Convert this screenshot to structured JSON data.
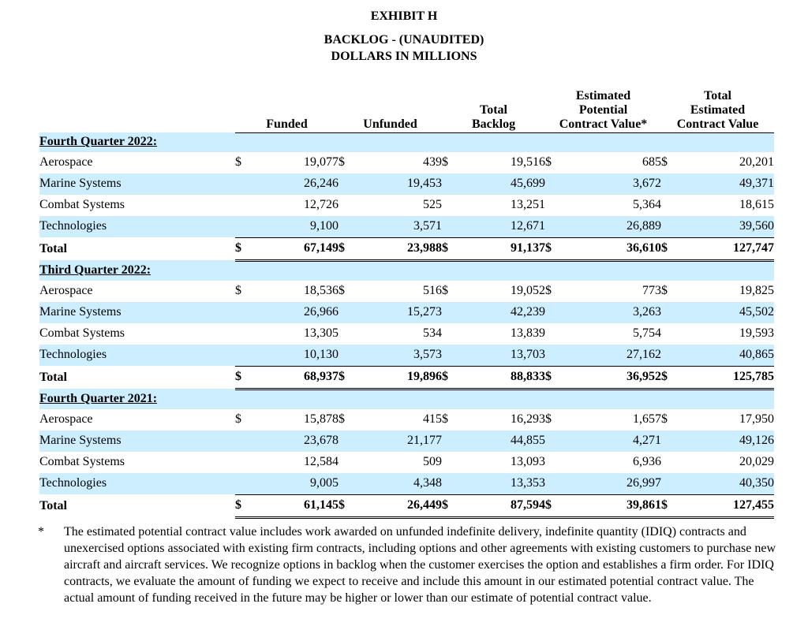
{
  "header": {
    "exhibit": "EXHIBIT H",
    "title": "BACKLOG - (UNAUDITED)",
    "subtitle": "DOLLARS IN MILLIONS"
  },
  "columns": {
    "funded": "Funded",
    "unfunded": "Unfunded",
    "total_backlog": "Total\nBacklog",
    "estimated_potential": "Estimated\nPotential\nContract Value*",
    "total_estimated": "Total\nEstimated\nContract Value"
  },
  "currency_symbol": "$",
  "sections": [
    {
      "title": "Fourth Quarter 2022:",
      "rows": [
        {
          "label": "Aerospace",
          "funded": "19,077",
          "unfunded": "439",
          "total_backlog": "19,516",
          "estimated_potential": "685",
          "total_estimated": "20,201"
        },
        {
          "label": "Marine Systems",
          "funded": "26,246",
          "unfunded": "19,453",
          "total_backlog": "45,699",
          "estimated_potential": "3,672",
          "total_estimated": "49,371"
        },
        {
          "label": "Combat Systems",
          "funded": "12,726",
          "unfunded": "525",
          "total_backlog": "13,251",
          "estimated_potential": "5,364",
          "total_estimated": "18,615"
        },
        {
          "label": "Technologies",
          "funded": "9,100",
          "unfunded": "3,571",
          "total_backlog": "12,671",
          "estimated_potential": "26,889",
          "total_estimated": "39,560"
        }
      ],
      "total": {
        "label": "Total",
        "funded": "67,149",
        "unfunded": "23,988",
        "total_backlog": "91,137",
        "estimated_potential": "36,610",
        "total_estimated": "127,747"
      }
    },
    {
      "title": "Third Quarter 2022:",
      "rows": [
        {
          "label": "Aerospace",
          "funded": "18,536",
          "unfunded": "516",
          "total_backlog": "19,052",
          "estimated_potential": "773",
          "total_estimated": "19,825"
        },
        {
          "label": "Marine Systems",
          "funded": "26,966",
          "unfunded": "15,273",
          "total_backlog": "42,239",
          "estimated_potential": "3,263",
          "total_estimated": "45,502"
        },
        {
          "label": "Combat Systems",
          "funded": "13,305",
          "unfunded": "534",
          "total_backlog": "13,839",
          "estimated_potential": "5,754",
          "total_estimated": "19,593"
        },
        {
          "label": "Technologies",
          "funded": "10,130",
          "unfunded": "3,573",
          "total_backlog": "13,703",
          "estimated_potential": "27,162",
          "total_estimated": "40,865"
        }
      ],
      "total": {
        "label": "Total",
        "funded": "68,937",
        "unfunded": "19,896",
        "total_backlog": "88,833",
        "estimated_potential": "36,952",
        "total_estimated": "125,785"
      }
    },
    {
      "title": "Fourth Quarter 2021:",
      "rows": [
        {
          "label": "Aerospace",
          "funded": "15,878",
          "unfunded": "415",
          "total_backlog": "16,293",
          "estimated_potential": "1,657",
          "total_estimated": "17,950"
        },
        {
          "label": "Marine Systems",
          "funded": "23,678",
          "unfunded": "21,177",
          "total_backlog": "44,855",
          "estimated_potential": "4,271",
          "total_estimated": "49,126"
        },
        {
          "label": "Combat Systems",
          "funded": "12,584",
          "unfunded": "509",
          "total_backlog": "13,093",
          "estimated_potential": "6,936",
          "total_estimated": "20,029"
        },
        {
          "label": "Technologies",
          "funded": "9,005",
          "unfunded": "4,348",
          "total_backlog": "13,353",
          "estimated_potential": "26,997",
          "total_estimated": "40,350"
        }
      ],
      "total": {
        "label": "Total",
        "funded": "61,145",
        "unfunded": "26,449",
        "total_backlog": "87,594",
        "estimated_potential": "39,861",
        "total_estimated": "127,455"
      }
    }
  ],
  "footnote": {
    "marker": "*",
    "text": "The estimated potential contract value includes work awarded on unfunded indefinite delivery, indefinite quantity (IDIQ) contracts and unexercised options associated with existing firm contracts, including options and other agreements with existing customers to purchase new aircraft and aircraft services. We recognize options in backlog when the customer exercises the option and establishes a firm order. For IDIQ contracts, we evaluate the amount of funding we expect to receive and include this amount in our estimated potential contract value. The actual amount of funding received in the future may be higher or lower than our estimate of potential contract value."
  },
  "colors": {
    "row_shade": "#cceeff",
    "text": "#000000"
  }
}
